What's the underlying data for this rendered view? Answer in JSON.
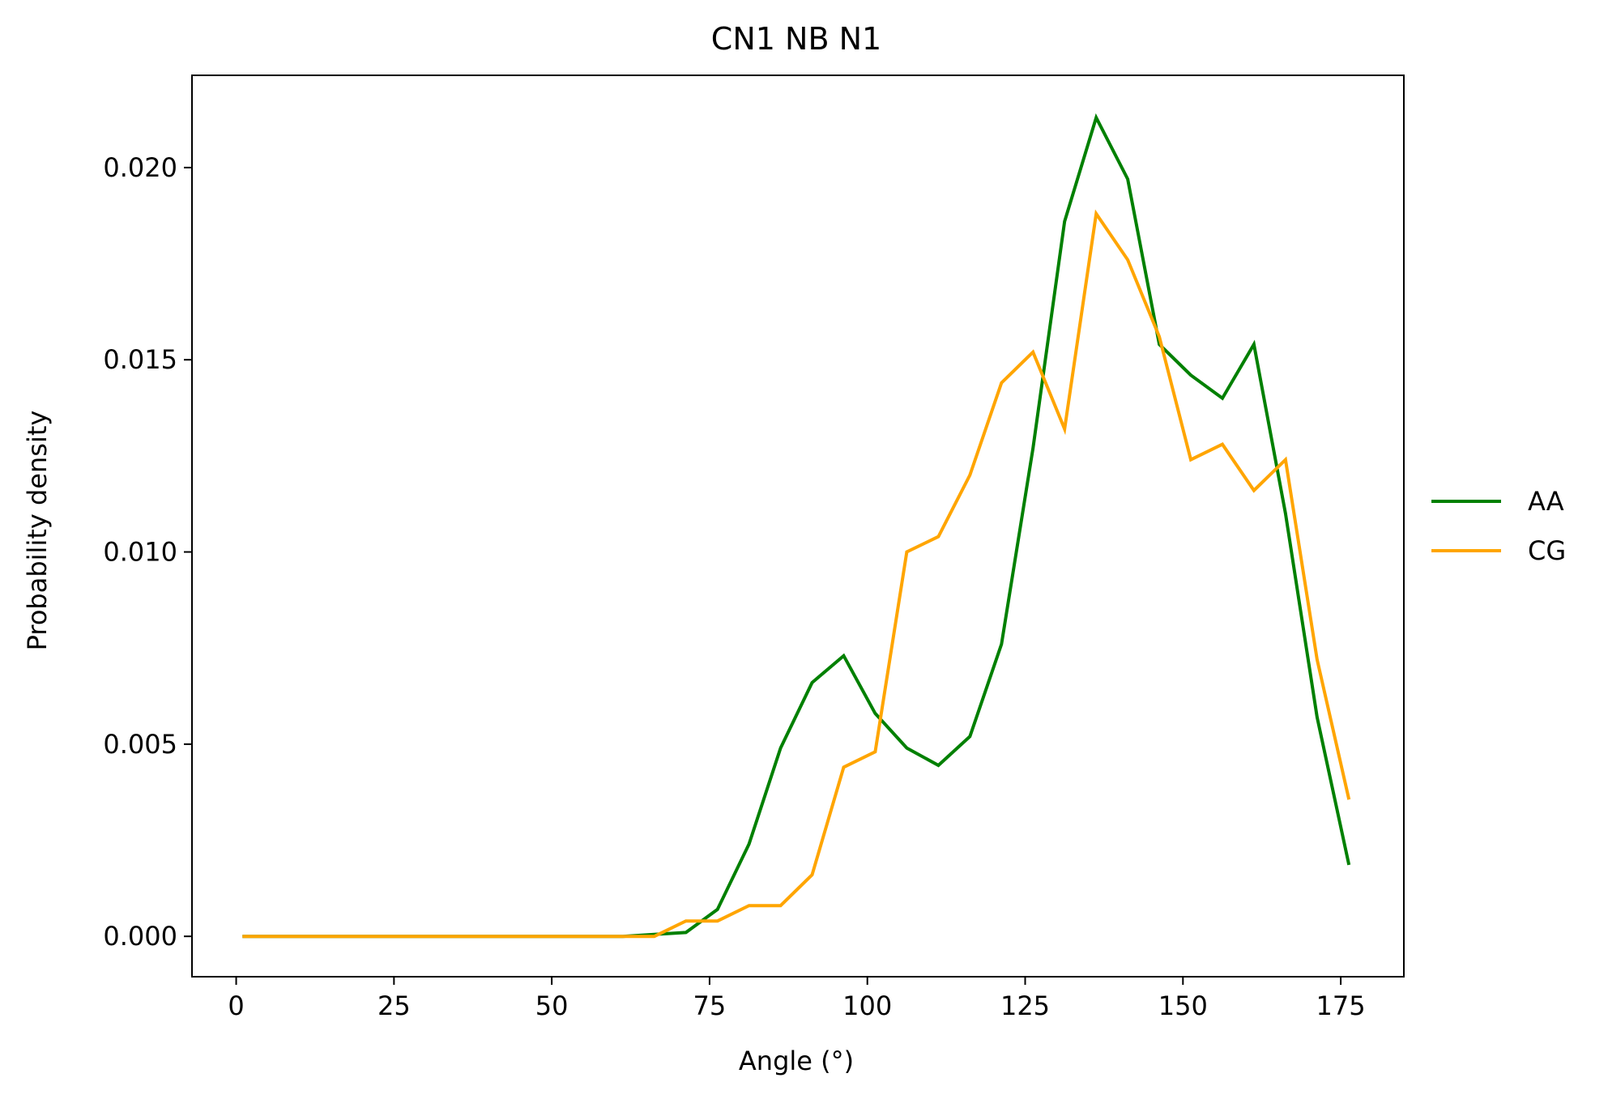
{
  "chart_data": {
    "type": "line",
    "title": "CN1 NB N1",
    "xlabel": "Angle (°)",
    "ylabel": "Probability density",
    "xlim": [
      -7,
      185
    ],
    "ylim": [
      -0.00105,
      0.0224
    ],
    "xticks": [
      0,
      25,
      50,
      75,
      100,
      125,
      150,
      175
    ],
    "xtick_labels": [
      "0",
      "25",
      "50",
      "75",
      "100",
      "125",
      "150",
      "175"
    ],
    "yticks": [
      0.0,
      0.005,
      0.01,
      0.015,
      0.02
    ],
    "ytick_labels": [
      "0.000",
      "0.005",
      "0.010",
      "0.015",
      "0.020"
    ],
    "grid": false,
    "legend_position": "right",
    "x": [
      1.25,
      6.25,
      11.25,
      16.25,
      21.25,
      26.25,
      31.25,
      36.25,
      41.25,
      46.25,
      51.25,
      56.25,
      61.25,
      66.25,
      71.25,
      76.25,
      81.25,
      86.25,
      91.25,
      96.25,
      101.25,
      106.25,
      111.25,
      116.25,
      121.25,
      126.25,
      131.25,
      136.25,
      141.25,
      146.25,
      151.25,
      156.25,
      161.25,
      166.25,
      171.25,
      176.25
    ],
    "series": [
      {
        "name": "AA",
        "color": "#008000",
        "values": [
          0,
          0,
          0,
          0,
          0,
          0,
          0,
          0,
          0,
          0,
          0,
          0,
          0,
          5e-05,
          0.0001,
          0.0007,
          0.0024,
          0.0049,
          0.0066,
          0.0073,
          0.0058,
          0.0049,
          0.00445,
          0.0052,
          0.0076,
          0.0127,
          0.0186,
          0.0213,
          0.0197,
          0.0154,
          0.0146,
          0.014,
          0.0154,
          0.011,
          0.0057,
          0.0019
        ]
      },
      {
        "name": "CG",
        "color": "#FFA500",
        "values": [
          0,
          0,
          0,
          0,
          0,
          0,
          0,
          0,
          0,
          0,
          0,
          0,
          0,
          0,
          0.0004,
          0.0004,
          0.0008,
          0.0008,
          0.0016,
          0.0044,
          0.0048,
          0.01,
          0.0104,
          0.012,
          0.0144,
          0.0152,
          0.0132,
          0.0188,
          0.0176,
          0.0156,
          0.0124,
          0.0128,
          0.0116,
          0.0124,
          0.0072,
          0.0036
        ]
      }
    ]
  }
}
